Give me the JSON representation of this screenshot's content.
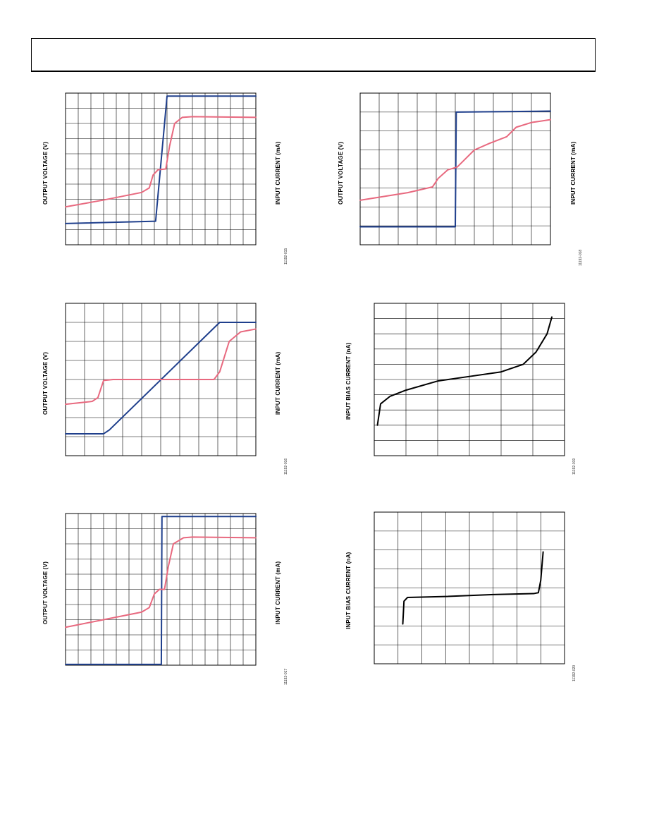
{
  "colors": {
    "blue": "#1f3f8c",
    "pink": "#e8697f",
    "black": "#000000",
    "grid": "#000000"
  },
  "chart_data": [
    {
      "id": "c1",
      "type": "line",
      "ylabel": "OUTPUT VOLTAGE (V)",
      "y2label": "INPUT CURRENT (mA)",
      "figure_id": "11192-015",
      "grid": {
        "cols": 15,
        "rows": 10
      },
      "xlim": [
        0,
        15
      ],
      "ylim": [
        0,
        10
      ],
      "series": [
        {
          "color_key": "blue",
          "points": [
            [
              0,
              1.4
            ],
            [
              7.1,
              1.55
            ],
            [
              8.0,
              9.8
            ],
            [
              15,
              9.8
            ]
          ]
        },
        {
          "color_key": "pink",
          "points": [
            [
              0,
              2.5
            ],
            [
              3,
              2.95
            ],
            [
              6,
              3.45
            ],
            [
              6.6,
              3.75
            ],
            [
              6.9,
              4.6
            ],
            [
              7.3,
              4.95
            ],
            [
              7.9,
              5.0
            ],
            [
              8.2,
              6.5
            ],
            [
              8.6,
              8.0
            ],
            [
              9.2,
              8.4
            ],
            [
              10,
              8.45
            ],
            [
              15,
              8.4
            ]
          ]
        }
      ]
    },
    {
      "id": "c2",
      "type": "line",
      "ylabel": "OUTPUT VOLTAGE (V)",
      "y2label": "INPUT CURRENT (mA)",
      "figure_id": "11192-018",
      "grid": {
        "cols": 10,
        "rows": 8
      },
      "xlim": [
        0,
        10
      ],
      "ylim": [
        0,
        8
      ],
      "series": [
        {
          "color_key": "blue",
          "points": [
            [
              0,
              0.95
            ],
            [
              5.0,
              0.95
            ],
            [
              5.05,
              7.0
            ],
            [
              10,
              7.05
            ]
          ]
        },
        {
          "color_key": "pink",
          "points": [
            [
              0,
              2.35
            ],
            [
              2.5,
              2.75
            ],
            [
              3.8,
              3.05
            ],
            [
              4.1,
              3.5
            ],
            [
              4.6,
              3.95
            ],
            [
              5.1,
              4.1
            ],
            [
              5.5,
              4.5
            ],
            [
              6.0,
              5.0
            ],
            [
              6.8,
              5.35
            ],
            [
              7.7,
              5.7
            ],
            [
              8.2,
              6.2
            ],
            [
              9.0,
              6.45
            ],
            [
              10,
              6.6
            ]
          ]
        }
      ]
    },
    {
      "id": "c3",
      "type": "line",
      "ylabel": "OUTPUT VOLTAGE (V)",
      "y2label": "INPUT CURRENT (mA)",
      "figure_id": "11192-016",
      "grid": {
        "cols": 10,
        "rows": 8
      },
      "xlim": [
        0,
        10
      ],
      "ylim": [
        0,
        8
      ],
      "series": [
        {
          "color_key": "blue",
          "points": [
            [
              0,
              1.15
            ],
            [
              2.0,
              1.15
            ],
            [
              2.3,
              1.35
            ],
            [
              8.1,
              7.0
            ],
            [
              10,
              7.0
            ]
          ]
        },
        {
          "color_key": "pink",
          "points": [
            [
              0,
              2.7
            ],
            [
              1.4,
              2.85
            ],
            [
              1.7,
              3.05
            ],
            [
              2.0,
              3.95
            ],
            [
              2.5,
              4.0
            ],
            [
              7.8,
              4.0
            ],
            [
              8.1,
              4.4
            ],
            [
              8.6,
              6.0
            ],
            [
              9.2,
              6.5
            ],
            [
              10,
              6.65
            ]
          ]
        }
      ]
    },
    {
      "id": "c4",
      "type": "line",
      "ylabel": "INPUT BIAS CURRENT (nA)",
      "figure_id": "11192-019",
      "grid": {
        "cols": 6,
        "rows": 10
      },
      "xlim": [
        0,
        6
      ],
      "ylim": [
        0,
        10
      ],
      "series": [
        {
          "color_key": "black",
          "points": [
            [
              0.1,
              2.0
            ],
            [
              0.2,
              3.4
            ],
            [
              0.5,
              3.9
            ],
            [
              1.0,
              4.3
            ],
            [
              2.0,
              4.9
            ],
            [
              3.0,
              5.2
            ],
            [
              4.0,
              5.5
            ],
            [
              4.7,
              6.0
            ],
            [
              5.1,
              6.8
            ],
            [
              5.45,
              8.0
            ],
            [
              5.6,
              9.1
            ]
          ]
        }
      ]
    },
    {
      "id": "c5",
      "type": "line",
      "ylabel": "INPUT BIAS CURRENT (nA)",
      "figure_id": "11192-020",
      "grid": {
        "cols": 8,
        "rows": 8
      },
      "xlim": [
        0,
        8
      ],
      "ylim": [
        0,
        8
      ],
      "series": [
        {
          "color_key": "black",
          "points": [
            [
              1.2,
              2.1
            ],
            [
              1.25,
              3.3
            ],
            [
              1.4,
              3.5
            ],
            [
              3,
              3.55
            ],
            [
              5,
              3.65
            ],
            [
              6.7,
              3.7
            ],
            [
              6.9,
              3.75
            ],
            [
              7.0,
              4.4
            ],
            [
              7.1,
              5.9
            ]
          ]
        }
      ]
    },
    {
      "id": "c6",
      "type": "line",
      "ylabel": "OUTPUT VOLTAGE (V)",
      "y2label": "INPUT CURRENT (mA)",
      "figure_id": "11192-017",
      "grid": {
        "cols": 15,
        "rows": 10
      },
      "xlim": [
        0,
        15
      ],
      "ylim": [
        0,
        10
      ],
      "series": [
        {
          "color_key": "blue",
          "points": [
            [
              0,
              0.05
            ],
            [
              7.55,
              0.05
            ],
            [
              7.6,
              9.8
            ],
            [
              15,
              9.8
            ]
          ]
        },
        {
          "color_key": "pink",
          "points": [
            [
              0,
              2.5
            ],
            [
              3,
              3.0
            ],
            [
              6,
              3.5
            ],
            [
              6.6,
              3.8
            ],
            [
              7.0,
              4.7
            ],
            [
              7.4,
              5.0
            ],
            [
              7.8,
              5.0
            ],
            [
              8.1,
              6.5
            ],
            [
              8.5,
              8.0
            ],
            [
              9.3,
              8.4
            ],
            [
              10,
              8.45
            ],
            [
              15,
              8.4
            ]
          ]
        }
      ]
    }
  ]
}
